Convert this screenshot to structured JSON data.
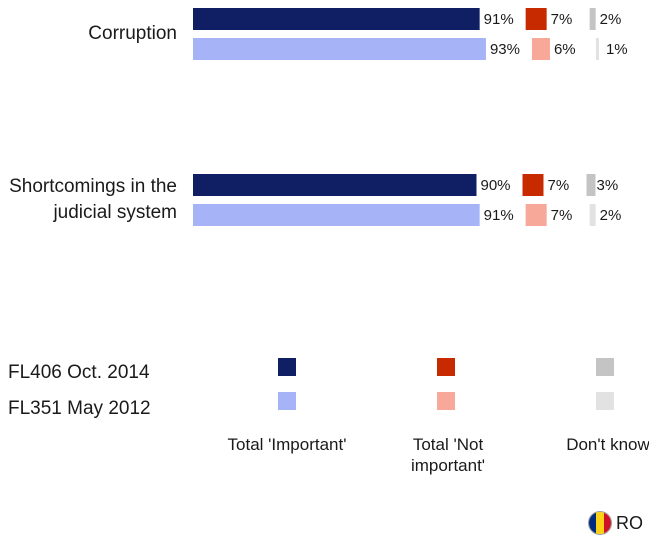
{
  "chart_data": {
    "type": "bar",
    "orientation": "horizontal",
    "categories": [
      "Corruption",
      "Shortcomings in the judicial system"
    ],
    "series": [
      {
        "name": "FL406 Oct. 2014",
        "important": [
          91,
          90
        ],
        "not_important": [
          7,
          7
        ],
        "dont_know": [
          2,
          3
        ]
      },
      {
        "name": "FL351 May 2012",
        "important": [
          93,
          91
        ],
        "not_important": [
          6,
          7
        ],
        "dont_know": [
          1,
          2
        ]
      }
    ],
    "value_suffix": "%",
    "measures": [
      "Total 'Important'",
      "Total 'Not important'",
      "Don't know"
    ],
    "colors": {
      "FL406 Oct. 2014": {
        "important": "#101e63",
        "not_important": "#c82a00",
        "dont_know": "#c4c4c4"
      },
      "FL351 May 2012": {
        "important": "#a6b4f7",
        "not_important": "#f7a898",
        "dont_know": "#e2e2e2"
      }
    }
  },
  "legend": {
    "rows": [
      "FL406 Oct. 2014",
      "FL351 May 2012"
    ],
    "columns": [
      "Total 'Important'",
      "Total 'Not\nimportant'",
      "Don't know"
    ]
  },
  "country": {
    "code": "RO",
    "flag_colors": [
      "#002b7f",
      "#fcd116",
      "#ce1126"
    ]
  }
}
